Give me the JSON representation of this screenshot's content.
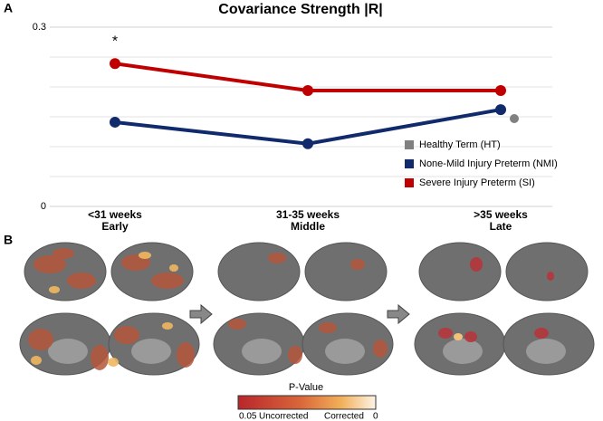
{
  "chart_data": {
    "type": "line",
    "title": "Covariance Strength |R|",
    "categories": [
      "<31 weeks",
      "31-35 weeks",
      ">35 weeks"
    ],
    "category_sublabels": [
      "Early",
      "Middle",
      "Late"
    ],
    "series": [
      {
        "name": "Healthy Term (HT)",
        "color": "#808080",
        "values": [
          null,
          null,
          0.147
        ]
      },
      {
        "name": "None-Mild Injury Preterm (NMI)",
        "color": "#102a6b",
        "values": [
          0.141,
          0.105,
          0.162
        ]
      },
      {
        "name": "Severe Injury Preterm (SI)",
        "color": "#c00000",
        "values": [
          0.239,
          0.194,
          0.194
        ]
      }
    ],
    "annotation": "*",
    "ylim": [
      0,
      0.3
    ],
    "yticks": [
      0,
      0.3
    ],
    "gridlines": [
      0.05,
      0.1,
      0.15,
      0.2,
      0.25
    ],
    "grid": true
  },
  "panel_labels": [
    "A",
    "B"
  ],
  "colorbar": {
    "title": "P-Value",
    "labels": [
      "0.05",
      "Uncorrected",
      "Corrected",
      "0"
    ]
  }
}
